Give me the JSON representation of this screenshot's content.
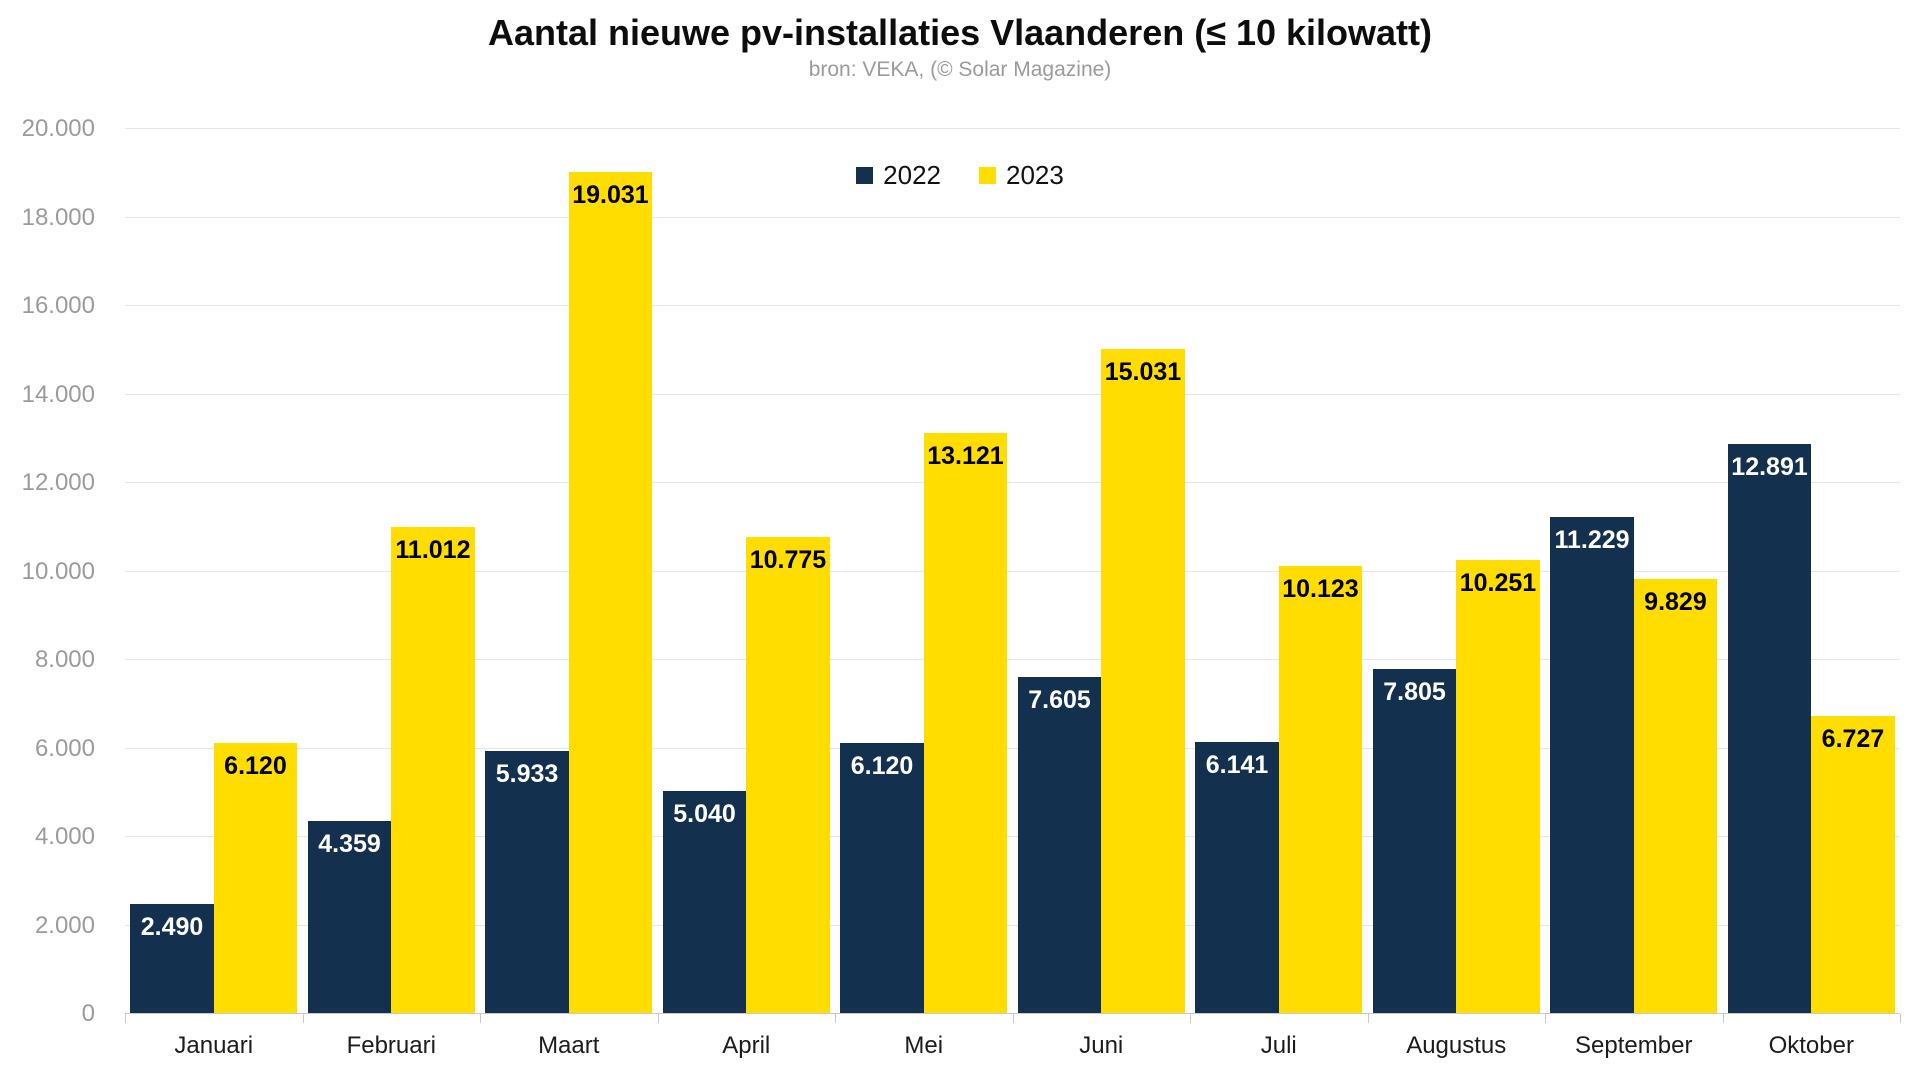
{
  "title": "Aantal nieuwe pv-installaties Vlaanderen (≤ 10 kilowatt)",
  "subtitle": "bron: VEKA, (© Solar Magazine)",
  "chart_data": {
    "type": "bar",
    "title": "Aantal nieuwe pv-installaties Vlaanderen (≤ 10 kilowatt)",
    "subtitle": "bron: VEKA, (© Solar Magazine)",
    "categories": [
      "Januari",
      "Februari",
      "Maart",
      "April",
      "Mei",
      "Juni",
      "Juli",
      "Augustus",
      "September",
      "Oktober"
    ],
    "series": [
      {
        "name": "2022",
        "color": "#14304F",
        "label_color": "#FFFFFF",
        "values": [
          2490,
          4359,
          5933,
          5040,
          6120,
          7605,
          6141,
          7805,
          11229,
          12891
        ]
      },
      {
        "name": "2023",
        "color": "#FFDD00",
        "label_color": "#000000",
        "values": [
          6120,
          11012,
          19031,
          10775,
          13121,
          15031,
          10123,
          10251,
          9829,
          6727
        ]
      }
    ],
    "ylim": [
      0,
      20000
    ],
    "ytick_step": 2000,
    "ytick_labels": [
      "0",
      "2.000",
      "4.000",
      "6.000",
      "8.000",
      "10.000",
      "12.000",
      "14.000",
      "16.000",
      "18.000",
      "20.000"
    ],
    "grid": true,
    "legend_position": "top-center",
    "thousands_separator": ".",
    "colors": {
      "background": "#FFFFFF",
      "gridline": "#E6E6E6",
      "axis_line": "#C9C9C9",
      "axis_text": "#9B9B9B",
      "category_text": "#1C1C1C",
      "title_text": "#0D0D0D",
      "subtitle_text": "#9B9B9B"
    }
  }
}
